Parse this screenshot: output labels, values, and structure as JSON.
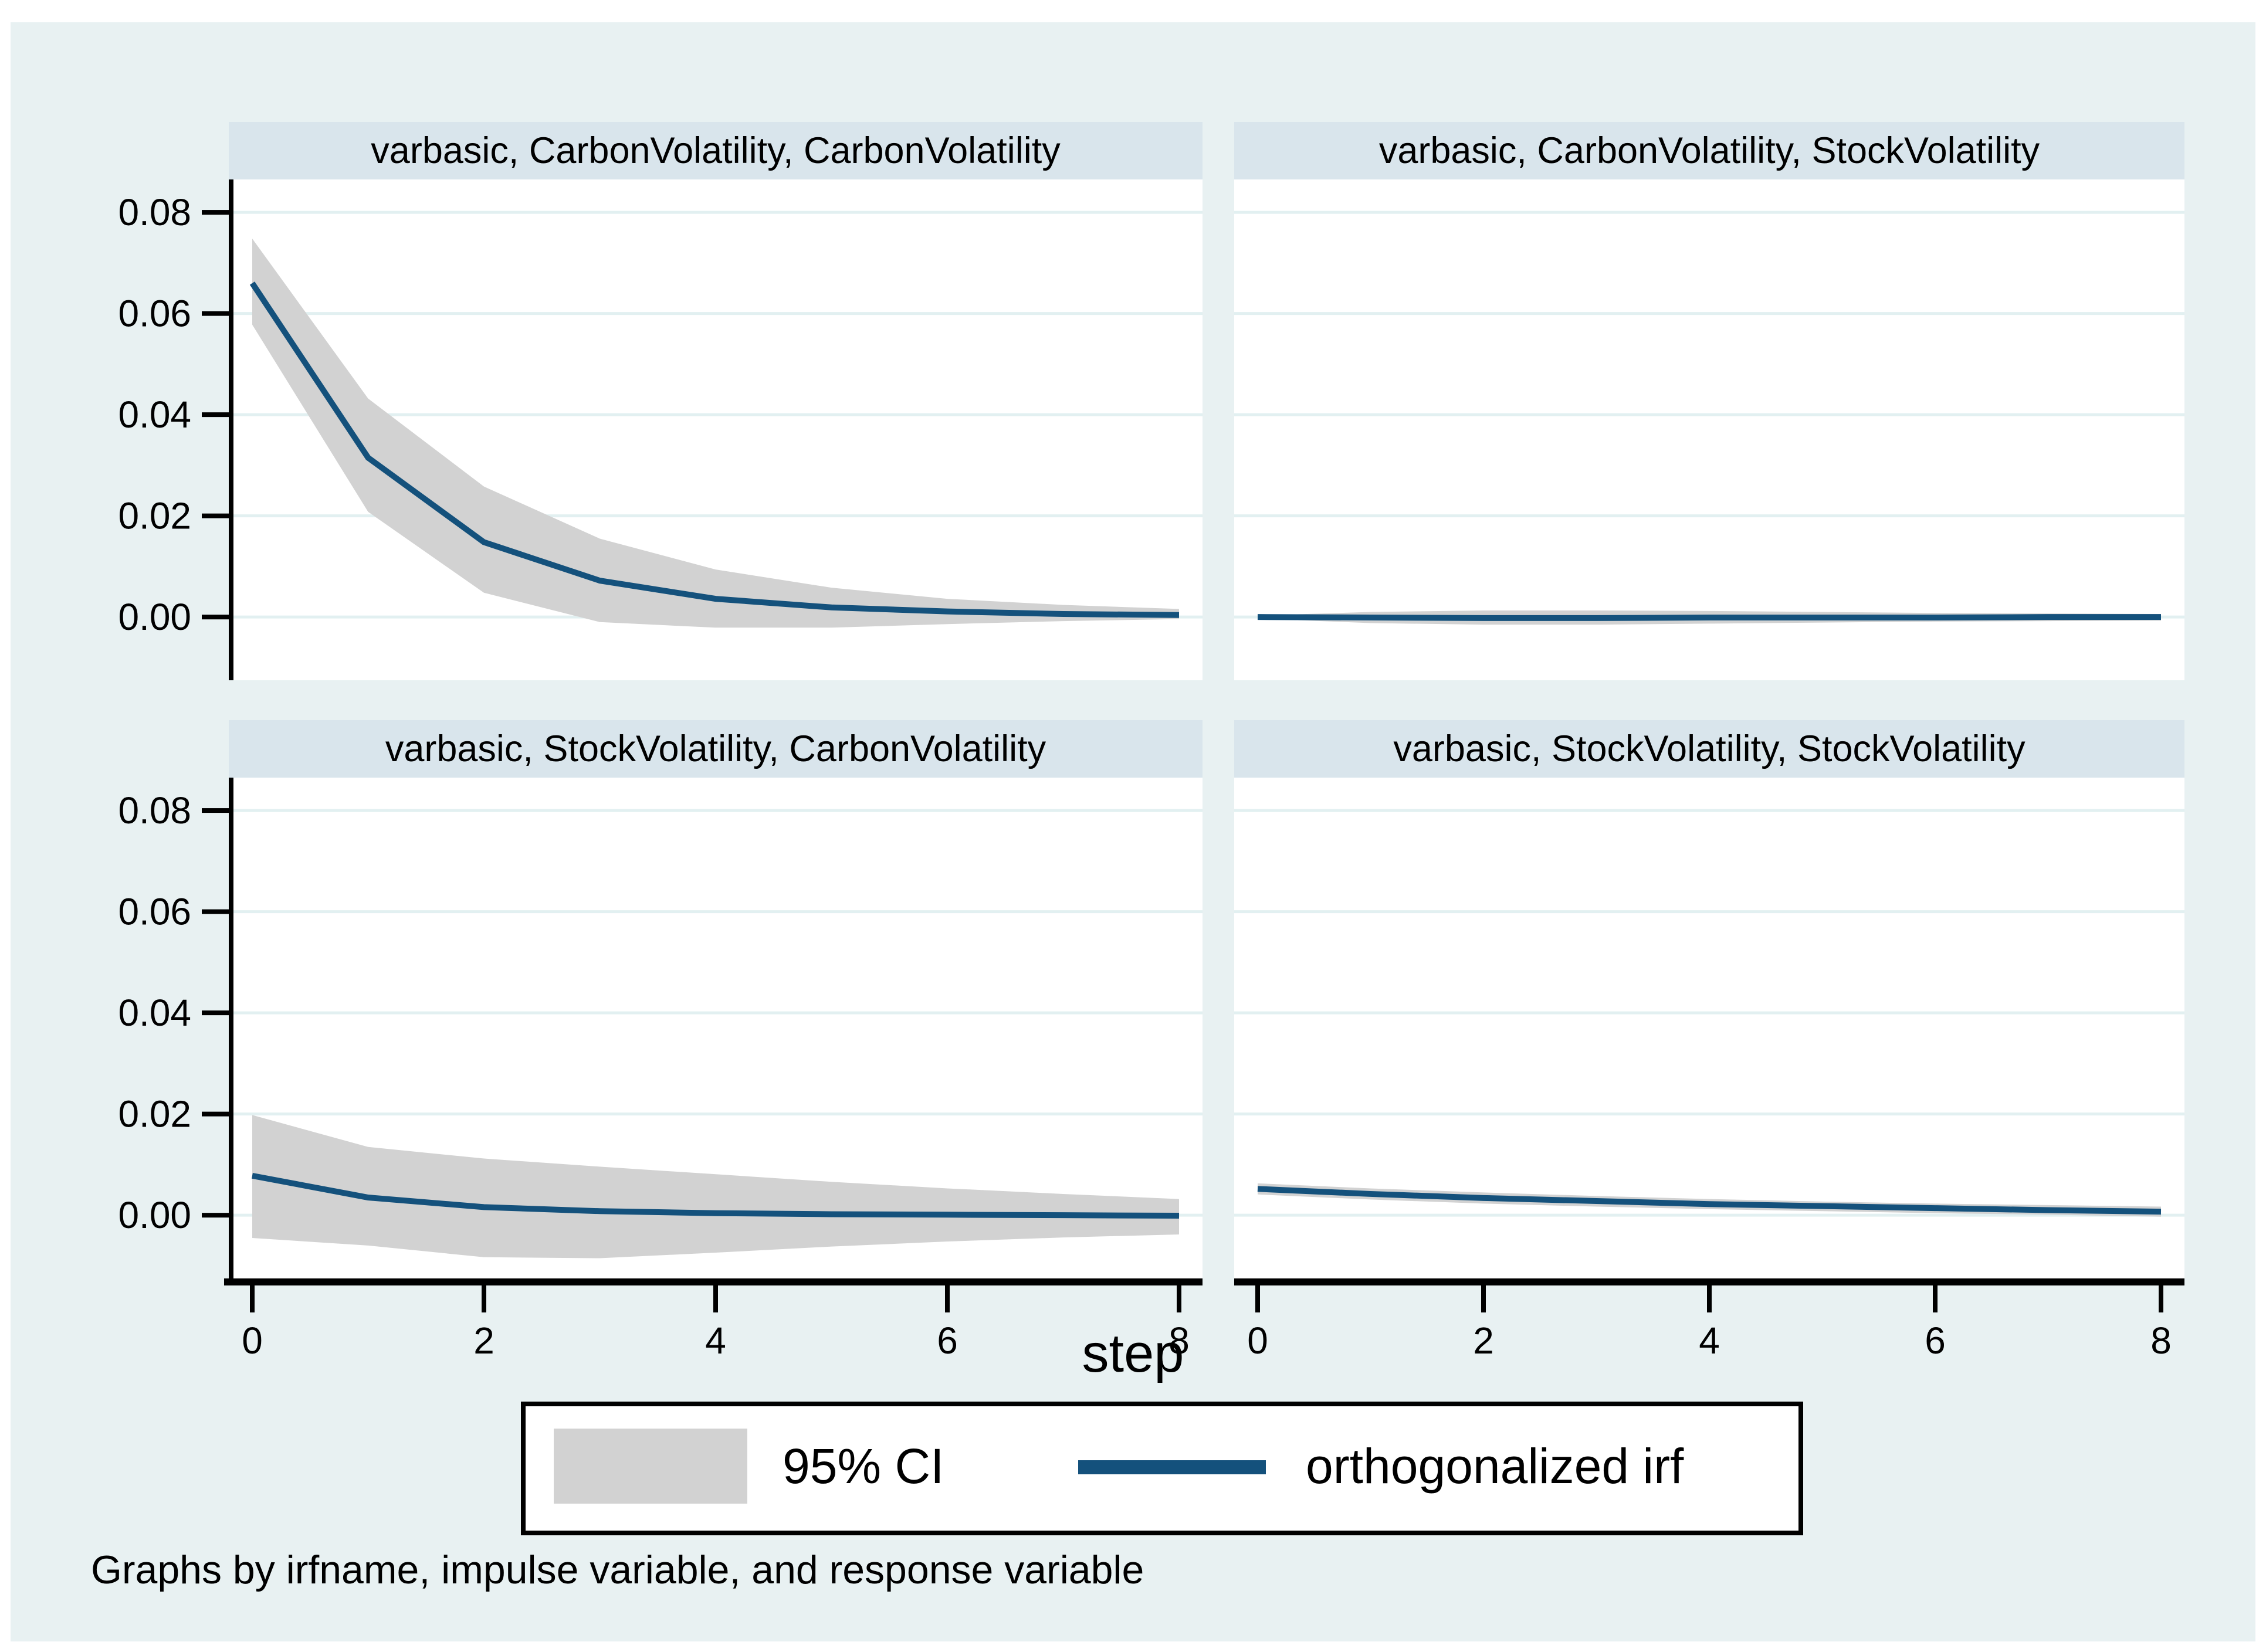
{
  "chart_data": [
    {
      "type": "area",
      "title": "varbasic, CarbonVolatility, CarbonVolatility",
      "irfname": "varbasic",
      "impulse": "CarbonVolatility",
      "response": "CarbonVolatility",
      "x": [
        0,
        1,
        2,
        3,
        4,
        5,
        6,
        7,
        8
      ],
      "irf": [
        0.066,
        0.0315,
        0.0148,
        0.0072,
        0.0036,
        0.0019,
        0.0011,
        0.0006,
        0.0004
      ],
      "ci_upper": [
        0.0748,
        0.0432,
        0.0258,
        0.0155,
        0.0094,
        0.0058,
        0.0036,
        0.0024,
        0.0016
      ],
      "ci_lower": [
        0.0578,
        0.0208,
        0.0048,
        -0.001,
        -0.0021,
        -0.0021,
        -0.0014,
        -0.0008,
        -0.0004
      ]
    },
    {
      "type": "area",
      "title": "varbasic, CarbonVolatility, StockVolatility",
      "irfname": "varbasic",
      "impulse": "CarbonVolatility",
      "response": "StockVolatility",
      "x": [
        0,
        1,
        2,
        3,
        4,
        5,
        6,
        7,
        8
      ],
      "irf": [
        0.0,
        -0.0001,
        -0.0002,
        -0.0002,
        -0.0001,
        -0.0001,
        -0.0001,
        0.0,
        0.0
      ],
      "ci_upper": [
        0.0003,
        0.001,
        0.0013,
        0.0013,
        0.0012,
        0.001,
        0.0008,
        0.0007,
        0.0006
      ],
      "ci_lower": [
        -0.0003,
        -0.0012,
        -0.0015,
        -0.0015,
        -0.0013,
        -0.0011,
        -0.0009,
        -0.0008,
        -0.0007
      ]
    },
    {
      "type": "area",
      "title": "varbasic, StockVolatility, CarbonVolatility",
      "irfname": "varbasic",
      "impulse": "StockVolatility",
      "response": "CarbonVolatility",
      "x": [
        0,
        1,
        2,
        3,
        4,
        5,
        6,
        7,
        8
      ],
      "irf": [
        0.0078,
        0.0035,
        0.0016,
        0.0008,
        0.0004,
        0.0002,
        0.0001,
        0.0,
        -0.0001
      ],
      "ci_upper": [
        0.0198,
        0.0135,
        0.0112,
        0.0096,
        0.0081,
        0.0066,
        0.0053,
        0.0042,
        0.0032
      ],
      "ci_lower": [
        -0.0045,
        -0.006,
        -0.0083,
        -0.0085,
        -0.0074,
        -0.0062,
        -0.0052,
        -0.0044,
        -0.0038
      ]
    },
    {
      "type": "area",
      "title": "varbasic, StockVolatility, StockVolatility",
      "irfname": "varbasic",
      "impulse": "StockVolatility",
      "response": "StockVolatility",
      "x": [
        0,
        1,
        2,
        3,
        4,
        5,
        6,
        7,
        8
      ],
      "irf": [
        0.0052,
        0.0042,
        0.0034,
        0.0028,
        0.0022,
        0.0018,
        0.0014,
        0.001,
        0.0007
      ],
      "ci_upper": [
        0.0063,
        0.0053,
        0.0045,
        0.0038,
        0.0032,
        0.0027,
        0.0023,
        0.002,
        0.0017
      ],
      "ci_lower": [
        0.0041,
        0.0031,
        0.0023,
        0.0017,
        0.0012,
        0.0008,
        0.0004,
        0.0001,
        -0.0003
      ]
    }
  ],
  "axes": {
    "xlabel": "step",
    "x_tick_labels": [
      "0",
      "2",
      "4",
      "6",
      "8"
    ],
    "x_tick_values": [
      0,
      2,
      4,
      6,
      8
    ],
    "y_tick_labels": [
      "0.08",
      "0.06",
      "0.04",
      "0.02",
      "0.00"
    ],
    "y_tick_values": [
      0.08,
      0.06,
      0.04,
      0.02,
      0.0
    ],
    "xlim": [
      0,
      8
    ],
    "ylim": [
      -0.0125,
      0.0865
    ],
    "grid": "horizontal only"
  },
  "legend": {
    "ci_label": "95% CI",
    "irf_label": "orthogonalized irf"
  },
  "footer": {
    "note": "Graphs by irfname, impulse variable, and response variable"
  },
  "colors": {
    "page_background": "#FFFFFF",
    "figure_background": "#E8F1F2",
    "panel_title_bg": "#D9E5EC",
    "plot_bg": "#FFFFFF",
    "grid": "#E2F0F1",
    "irf_line": "#14517C",
    "ci_band": "#D2D2D2",
    "axis": "#000000",
    "text": "#000000"
  }
}
